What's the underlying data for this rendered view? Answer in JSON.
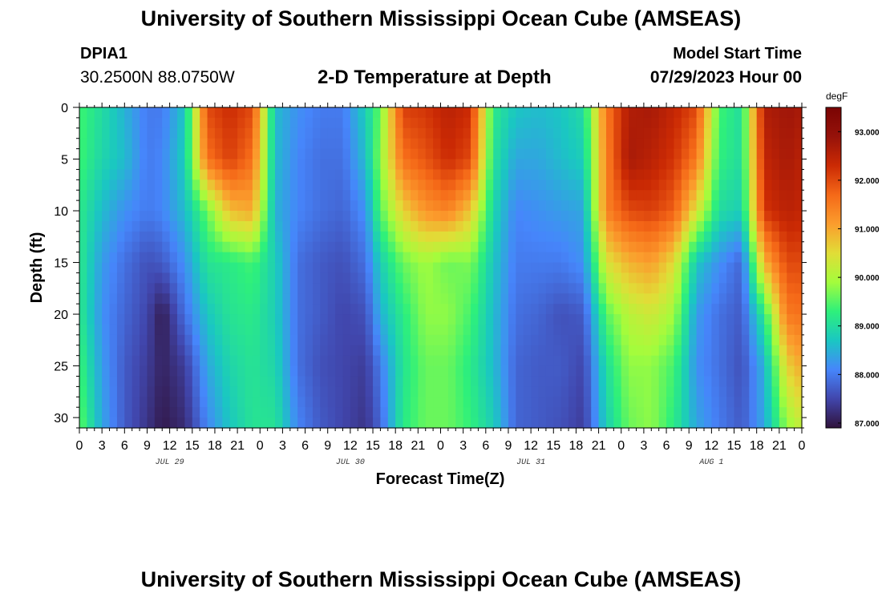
{
  "header": {
    "title": "University of Southern Mississippi Ocean Cube (AMSEAS)",
    "station_id": "DPIA1",
    "station_coords": "30.2500N  88.0750W",
    "plot_title": "2-D Temperature at Depth",
    "model_start_label": "Model Start Time",
    "model_start_value": "07/29/2023 Hour 00"
  },
  "footer": {
    "title": "University of Southern Mississippi Ocean Cube (AMSEAS)"
  },
  "chart_data": {
    "type": "heatmap",
    "title": "2-D Temperature at Depth",
    "xlabel": "Forecast Time(Z)",
    "ylabel": "Depth (ft)",
    "x_range_hours": [
      0,
      96
    ],
    "x_tick_step_hours": 3,
    "x_tick_labels": [
      "0",
      "3",
      "6",
      "9",
      "12",
      "15",
      "18",
      "21",
      "0",
      "3",
      "6",
      "9",
      "12",
      "15",
      "18",
      "21",
      "0",
      "3",
      "6",
      "9",
      "12",
      "15",
      "18",
      "21",
      "0",
      "3",
      "6",
      "9",
      "12",
      "15",
      "18",
      "21",
      "0"
    ],
    "day_labels": [
      {
        "label": "JUL 29",
        "hour": 12
      },
      {
        "label": "JUL 30",
        "hour": 36
      },
      {
        "label": "JUL 31",
        "hour": 60
      },
      {
        "label": "AUG 1",
        "hour": 84
      }
    ],
    "y_range_ft": [
      0,
      31
    ],
    "y_ticks": [
      0,
      5,
      10,
      15,
      20,
      25,
      30
    ],
    "y_tick_labels": [
      "0",
      "5",
      "10",
      "15",
      "20",
      "25",
      "30"
    ],
    "colorbar": {
      "unit": "degF",
      "min": 86.9,
      "max": 93.5,
      "tick_values": [
        87,
        88,
        89,
        90,
        91,
        92,
        93
      ],
      "tick_labels": [
        "87.000",
        "88.000",
        "89.000",
        "90.000",
        "91.000",
        "92.000",
        "93.000"
      ],
      "colors": [
        "#30123b",
        "#4146ac",
        "#4686fb",
        "#1ac7c2",
        "#2ef07b",
        "#a4fc3c",
        "#e1dd37",
        "#fb9d2d",
        "#f56918",
        "#cb2a04",
        "#96120a",
        "#7a0403"
      ]
    },
    "depth_profile": {
      "depths_ft": [
        0,
        5,
        10,
        15,
        20,
        25,
        31
      ],
      "times_hours": [
        0,
        3,
        6,
        9,
        11,
        14,
        17,
        20,
        23,
        26,
        29,
        32,
        35,
        38,
        40,
        43,
        46,
        49,
        52,
        55,
        58,
        61,
        64,
        67,
        70,
        73,
        76,
        79,
        82,
        85,
        88,
        91,
        94,
        96
      ],
      "temperature_degF": [
        [
          89.4,
          89.4,
          89.2,
          89.2,
          89.2,
          89.4,
          89.6
        ],
        [
          89.0,
          88.9,
          88.6,
          88.3,
          88.2,
          88.3,
          88.4
        ],
        [
          88.5,
          88.6,
          88.2,
          87.9,
          87.8,
          87.7,
          87.7
        ],
        [
          88.0,
          88.0,
          88.0,
          87.6,
          87.5,
          87.4,
          87.3
        ],
        [
          88.0,
          88.1,
          88.1,
          87.7,
          87.0,
          87.1,
          87.0
        ],
        [
          88.7,
          88.8,
          88.6,
          88.2,
          87.9,
          87.4,
          87.2
        ],
        [
          92.0,
          91.6,
          89.6,
          89.1,
          88.7,
          88.4,
          88.1
        ],
        [
          92.3,
          92.1,
          90.8,
          89.2,
          89.1,
          88.9,
          88.7
        ],
        [
          92.0,
          91.6,
          91.0,
          89.4,
          89.2,
          89.1,
          89.1
        ],
        [
          88.6,
          88.6,
          88.5,
          88.8,
          88.8,
          88.9,
          89.1
        ],
        [
          88.2,
          88.1,
          88.1,
          87.9,
          87.9,
          87.9,
          88.1
        ],
        [
          88.0,
          87.9,
          87.9,
          87.7,
          87.7,
          87.6,
          87.7
        ],
        [
          88.0,
          87.9,
          87.8,
          87.6,
          87.5,
          87.5,
          87.5
        ],
        [
          88.8,
          88.6,
          88.2,
          87.9,
          87.6,
          87.4,
          87.3
        ],
        [
          89.6,
          89.8,
          89.5,
          88.8,
          88.5,
          88.0,
          87.8
        ],
        [
          92.1,
          91.6,
          90.6,
          89.6,
          89.2,
          89.1,
          89.2
        ],
        [
          92.2,
          91.9,
          91.2,
          89.9,
          89.8,
          89.6,
          89.6
        ],
        [
          92.5,
          92.3,
          91.4,
          89.6,
          89.8,
          89.6,
          89.6
        ],
        [
          92.3,
          92.0,
          90.7,
          89.7,
          89.4,
          89.2,
          89.3
        ],
        [
          89.2,
          89.1,
          88.9,
          88.7,
          88.6,
          88.6,
          88.8
        ],
        [
          88.7,
          88.4,
          88.1,
          88.0,
          87.9,
          87.8,
          87.8
        ],
        [
          88.6,
          88.4,
          88.2,
          88.0,
          87.8,
          87.7,
          87.7
        ],
        [
          88.7,
          88.6,
          88.3,
          88.0,
          87.6,
          87.7,
          87.6
        ],
        [
          89.0,
          88.8,
          88.4,
          88.2,
          87.7,
          87.5,
          87.4
        ],
        [
          91.5,
          91.4,
          91.4,
          90.4,
          89.5,
          89.0,
          88.8
        ],
        [
          92.6,
          92.7,
          92.0,
          90.9,
          90.1,
          89.8,
          89.6
        ],
        [
          92.7,
          92.5,
          92.1,
          91.1,
          90.3,
          89.8,
          89.8
        ],
        [
          92.4,
          92.2,
          91.8,
          90.5,
          89.9,
          89.4,
          89.2
        ],
        [
          92.0,
          91.5,
          90.4,
          88.7,
          88.3,
          88.2,
          88.4
        ],
        [
          89.4,
          89.3,
          89.0,
          88.2,
          87.9,
          87.9,
          88.0
        ],
        [
          89.0,
          89.0,
          88.8,
          87.8,
          87.7,
          87.6,
          87.7
        ],
        [
          92.6,
          92.4,
          92.2,
          90.9,
          89.2,
          88.5,
          88.4
        ],
        [
          92.8,
          92.7,
          92.5,
          92.0,
          91.5,
          90.6,
          89.8
        ],
        [
          92.7,
          92.5,
          92.4,
          92.0,
          91.6,
          91.0,
          90.2
        ]
      ]
    }
  }
}
